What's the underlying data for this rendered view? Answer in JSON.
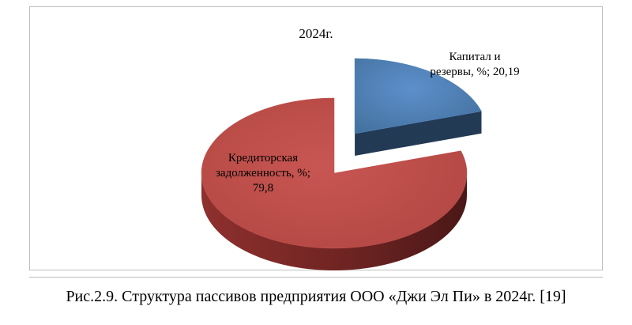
{
  "chart_data": {
    "type": "pie",
    "title": "2024г.",
    "slices": [
      {
        "label_lines": [
          "Капитал и",
          "резервы, %; 20,19"
        ],
        "value": 20.19,
        "color": "#4f81bd",
        "side_color": "#233a55",
        "exploded": true
      },
      {
        "label_lines": [
          "Кредиторская",
          "задолженность, %;",
          "79,8"
        ],
        "value": 79.8,
        "color": "#c0504d",
        "side_color": "#7a2826",
        "exploded": false
      }
    ],
    "legend": "none",
    "three_d": true
  },
  "caption": "Рис.2.9. Структура пассивов предприятия ООО «Джи Эл Пи» в 2024г. [19]"
}
